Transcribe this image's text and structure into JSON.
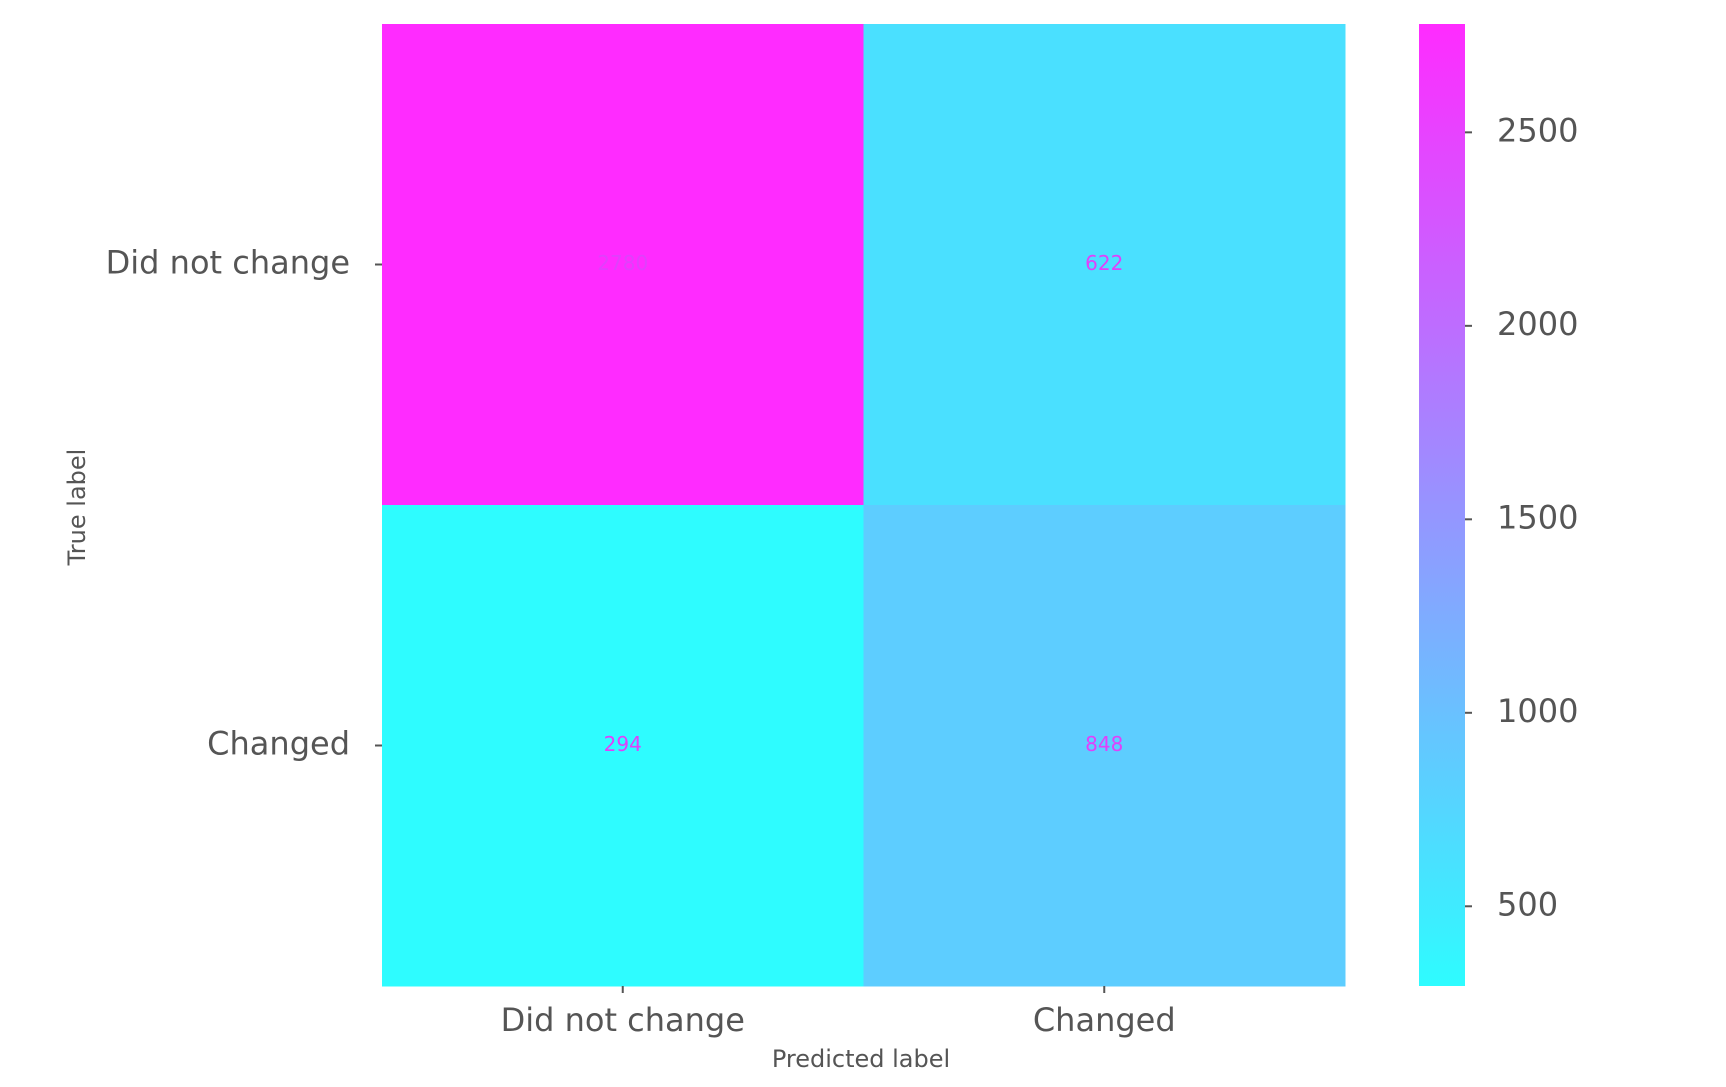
{
  "chart_data": {
    "type": "heatmap",
    "title": "",
    "xlabel": "Predicted label",
    "ylabel": "True label",
    "x_categories": [
      "Did not change",
      "Changed"
    ],
    "y_categories": [
      "Did not change",
      "Changed"
    ],
    "values": [
      [
        2780,
        622
      ],
      [
        294,
        848
      ]
    ],
    "colormap": "cool",
    "color_low": "#2efcff",
    "color_high": "#ff2bff",
    "colorbar": {
      "range": [
        294,
        2780
      ],
      "ticks": [
        500,
        1000,
        1500,
        2000,
        2500
      ],
      "tick_labels": [
        "500",
        "1000",
        "1500",
        "2000",
        "2500"
      ]
    },
    "annotation_color": "#e040fb",
    "grid": false
  }
}
